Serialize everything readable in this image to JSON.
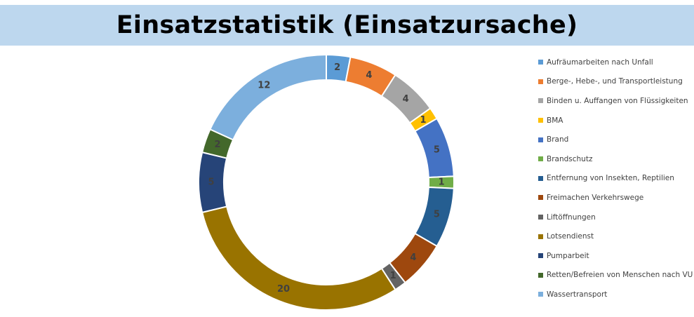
{
  "chart_data": {
    "type": "pie",
    "variant": "donut",
    "title": "Einsatzstatistik (Einsatzursache)",
    "legend_position": "right",
    "slices": [
      {
        "label": "Aufräumarbeiten nach Unfall",
        "value": 2,
        "color": "#5b9bd5"
      },
      {
        "label": "Berge-, Hebe-, und Transportleistung",
        "value": 4,
        "color": "#ed7d31"
      },
      {
        "label": "Binden u. Auffangen von Flüssigkeiten",
        "value": 4,
        "color": "#a5a5a5"
      },
      {
        "label": "BMA",
        "value": 1,
        "color": "#ffc000"
      },
      {
        "label": "Brand",
        "value": 5,
        "color": "#4472c4"
      },
      {
        "label": "Brandschutz",
        "value": 1,
        "color": "#70ad47"
      },
      {
        "label": "Entfernung von Insekten, Reptilien",
        "value": 5,
        "color": "#255e91"
      },
      {
        "label": "Freimachen Verkehrswege",
        "value": 4,
        "color": "#9e480e"
      },
      {
        "label": "Liftöffnungen",
        "value": 1,
        "color": "#636363"
      },
      {
        "label": "Lotsendienst",
        "value": 20,
        "color": "#997300"
      },
      {
        "label": "Pumparbeit",
        "value": 5,
        "color": "#264478"
      },
      {
        "label": "Retten/Befreien von Menschen nach VU",
        "value": 2,
        "color": "#43682b"
      },
      {
        "label": "Wassertransport",
        "value": 12,
        "color": "#7cafdd"
      }
    ]
  },
  "header": {
    "title": "Einsatzstatistik (Einsatzursache)",
    "background": "#bdd7ee"
  }
}
